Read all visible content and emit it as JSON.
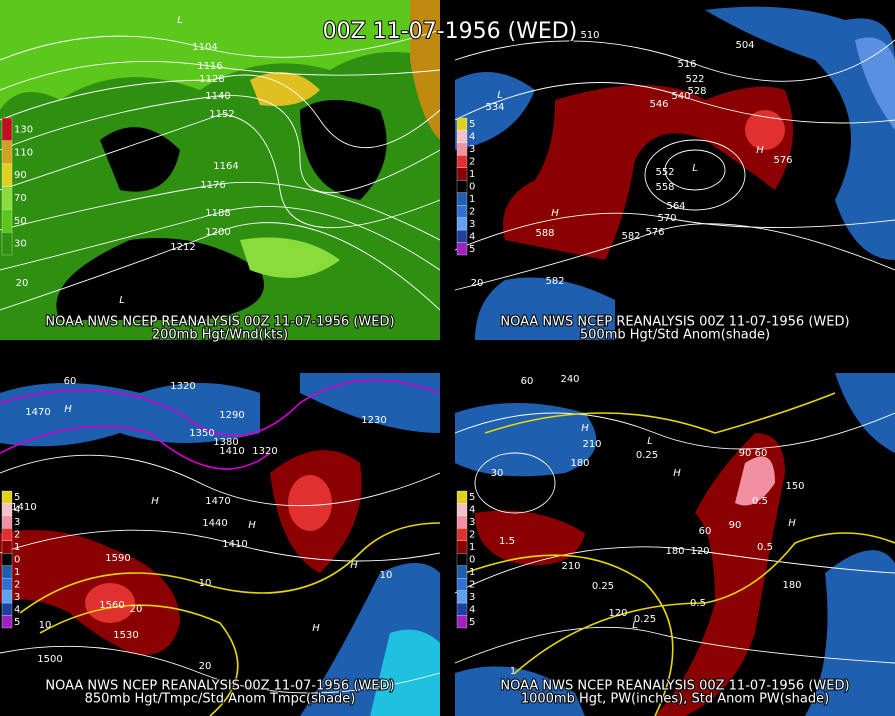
{
  "title": "00Z 11-07-1956 (WED)",
  "panels": [
    {
      "caption": [
        "NOAA NWS NCEP REANALYSIS 00Z 11-07-1956 (WED)",
        "200mb Hgt/Wnd(kts)"
      ],
      "colorbar": [
        130,
        110,
        90,
        70,
        50,
        30
      ],
      "labels": [
        "L",
        1104,
        1116,
        1128,
        1140,
        1152,
        1164,
        1176,
        1188,
        1200,
        1212,
        "L",
        20
      ]
    },
    {
      "caption": [
        "NOAA NWS NCEP REANALYSIS 00Z 11-07-1956 (WED)",
        "500mb Hgt/Std Anom(shade)"
      ],
      "colorbar": [
        5,
        4,
        3,
        2,
        1,
        0,
        1,
        2,
        3,
        4,
        5
      ],
      "labels": [
        510,
        504,
        516,
        522,
        528,
        534,
        540,
        546,
        552,
        558,
        564,
        570,
        576,
        576,
        582,
        582,
        588,
        "H",
        "H",
        "L",
        "L",
        20
      ]
    },
    {
      "caption": [
        "NOAA NWS NCEP REANALYSIS 00Z 11-07-1956 (WED)",
        "850mb Hgt/Tmpc/Std Anom Tmpc(shade)"
      ],
      "colorbar": [
        5,
        4,
        3,
        2,
        1,
        0,
        1,
        2,
        3,
        4,
        5
      ],
      "labels": [
        1470,
        "H",
        1320,
        1290,
        1350,
        1380,
        1410,
        1320,
        1230,
        1440,
        1470,
        1410,
        1410,
        1590,
        1560,
        1530,
        1500,
        "H",
        "H",
        "H",
        "H",
        10,
        10,
        20,
        20,
        10,
        60
      ]
    },
    {
      "caption": [
        "NOAA NWS NCEP REANALYSIS 00Z 11-07-1956 (WED)",
        "1000mb Hgt, PW(inches), Std Anom PW(shade)"
      ],
      "colorbar": [
        5,
        4,
        3,
        2,
        1,
        0,
        1,
        2,
        3,
        4,
        5
      ],
      "labels": [
        240,
        210,
        180,
        150,
        120,
        180,
        210,
        90,
        60,
        90,
        60,
        30,
        180,
        120,
        0.25,
        0.25,
        0.25,
        0.5,
        0.5,
        0.5,
        1.5,
        1,
        "H",
        "H",
        "H",
        "L",
        "L",
        60
      ]
    }
  ]
}
